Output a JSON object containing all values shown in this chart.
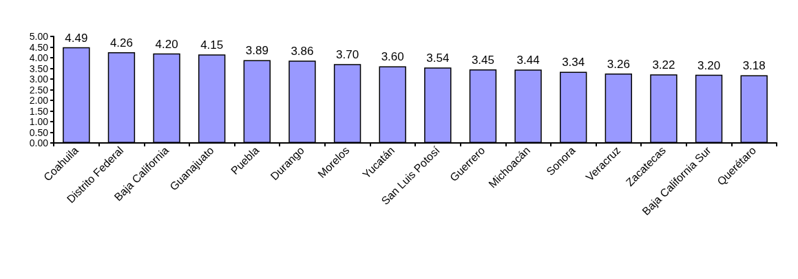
{
  "chart_data": {
    "type": "bar",
    "categories": [
      "Coahuila",
      "Distrito Federal",
      "Baja California",
      "Guanajuato",
      "Puebla",
      "Durango",
      "Morelos",
      "Yucatán",
      "San Luis Potosí",
      "Guerrero",
      "Michoacán",
      "Sonora",
      "Veracruz",
      "Zacatecas",
      "Baja California Sur",
      "Querétaro"
    ],
    "values": [
      4.49,
      4.26,
      4.2,
      4.15,
      3.89,
      3.86,
      3.7,
      3.6,
      3.54,
      3.45,
      3.44,
      3.34,
      3.26,
      3.22,
      3.2,
      3.18
    ],
    "value_labels": [
      "4.49",
      "4.26",
      "4.20",
      "4.15",
      "3.89",
      "3.86",
      "3.70",
      "3.60",
      "3.54",
      "3.45",
      "3.44",
      "3.34",
      "3.26",
      "3.22",
      "3.20",
      "3.18"
    ],
    "color": "#9999ff",
    "ylim": [
      0,
      5
    ],
    "yticks": [
      "0.00",
      "0.50",
      "1.00",
      "1.50",
      "2.00",
      "2.50",
      "3.00",
      "3.50",
      "4.00",
      "4.50",
      "5.00"
    ],
    "grid": false
  }
}
